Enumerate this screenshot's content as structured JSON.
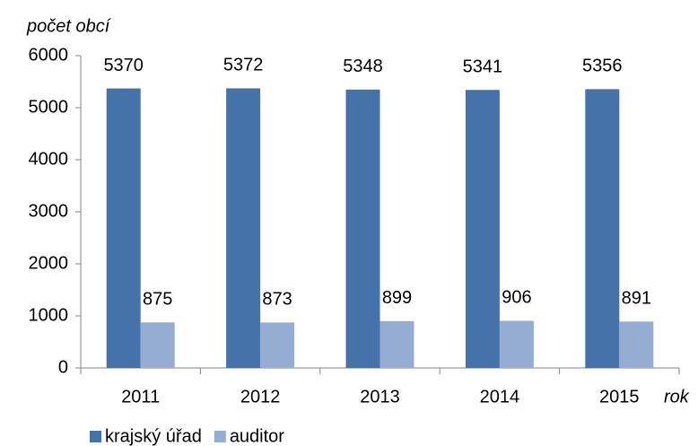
{
  "chart_data": {
    "type": "bar",
    "y_label": "počet obcí",
    "x_label": "rok",
    "categories": [
      "2011",
      "2012",
      "2013",
      "2014",
      "2015"
    ],
    "series": [
      {
        "name": "krajský úřad",
        "color": "#4672aa",
        "values": [
          5370,
          5372,
          5348,
          5341,
          5356
        ]
      },
      {
        "name": "auditor",
        "color": "#95add3",
        "values": [
          875,
          873,
          899,
          906,
          891
        ]
      }
    ],
    "ylim": [
      0,
      6000
    ],
    "yticks": [
      0,
      1000,
      2000,
      3000,
      4000,
      5000,
      6000
    ],
    "grid": false,
    "legend": "bottom"
  }
}
